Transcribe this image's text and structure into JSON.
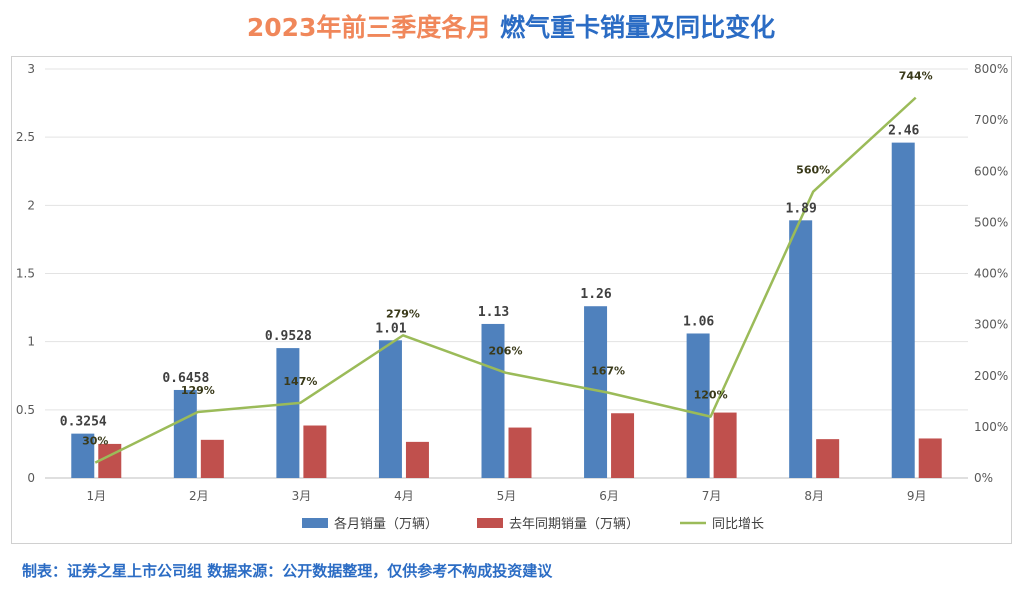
{
  "title": {
    "part1": "2023年前三季度各月",
    "part2": "燃气重卡销量及同比变化"
  },
  "footer": "制表：证券之星上市公司组  数据来源：公开数据整理，仅供参考不构成投资建议",
  "colors": {
    "bar_current": "#4f81bd",
    "bar_previous": "#c0504d",
    "line_yoy": "#9bbb59",
    "title_part1": "#f0875a",
    "title_part2": "#2b6cc4"
  },
  "chart_data": {
    "type": "bar",
    "categories": [
      "1月",
      "2月",
      "3月",
      "4月",
      "5月",
      "6月",
      "7月",
      "8月",
      "9月"
    ],
    "series": [
      {
        "name": "各月销量（万辆）",
        "type": "bar",
        "axis": "left",
        "values": [
          0.3254,
          0.6458,
          0.9528,
          1.01,
          1.13,
          1.26,
          1.06,
          1.89,
          2.46
        ],
        "labels": [
          "0.3254",
          "0.6458",
          "0.9528",
          "1.01",
          "1.13",
          "1.26",
          "1.06",
          "1.89",
          "2.46"
        ]
      },
      {
        "name": "去年同期销量（万辆）",
        "type": "bar",
        "axis": "left",
        "values": [
          0.25,
          0.28,
          0.385,
          0.265,
          0.37,
          0.475,
          0.48,
          0.285,
          0.29
        ]
      },
      {
        "name": "同比增长",
        "type": "line",
        "axis": "right",
        "values": [
          30,
          129,
          147,
          279,
          206,
          167,
          120,
          560,
          744
        ],
        "labels": [
          "30%",
          "129%",
          "147%",
          "279%",
          "206%",
          "167%",
          "120%",
          "560%",
          "744%"
        ]
      }
    ],
    "y_left": {
      "min": 0,
      "max": 3,
      "ticks": [
        "0",
        "0.5",
        "1",
        "1.5",
        "2",
        "2.5",
        "3"
      ]
    },
    "y_right": {
      "min": 0,
      "max": 800,
      "ticks": [
        "0%",
        "100%",
        "200%",
        "300%",
        "400%",
        "500%",
        "600%",
        "700%",
        "800%"
      ]
    },
    "grid": true,
    "legend": "bottom"
  }
}
